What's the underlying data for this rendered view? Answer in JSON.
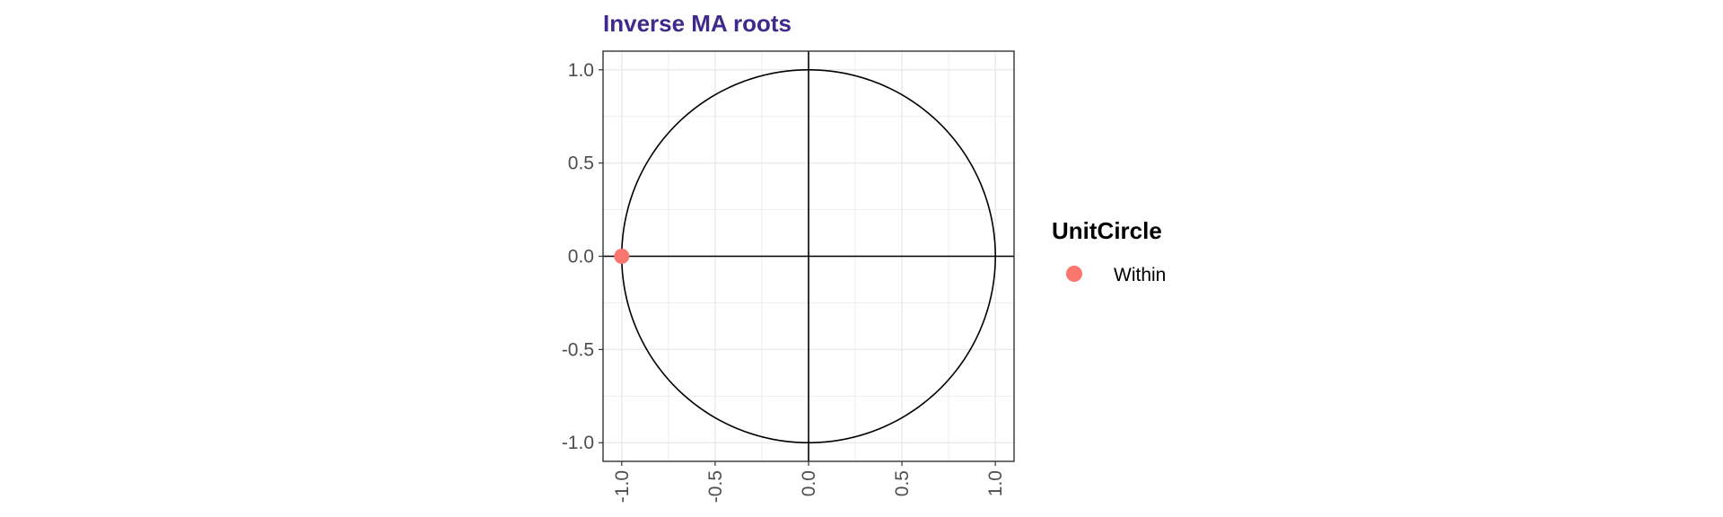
{
  "chart_data": {
    "type": "scatter",
    "title": "Inverse MA roots",
    "xlim": [
      -1.1,
      1.1
    ],
    "ylim": [
      -1.1,
      1.1
    ],
    "x_ticks": [
      -1.0,
      -0.5,
      0.0,
      0.5,
      1.0
    ],
    "y_ticks": [
      -1.0,
      -0.5,
      0.0,
      0.5,
      1.0
    ],
    "x_tick_labels": [
      "-1.0",
      "-0.5",
      "0.0",
      "0.5",
      "1.0"
    ],
    "y_tick_labels": [
      "-1.0",
      "-0.5",
      "0.0",
      "0.5",
      "1.0"
    ],
    "grid": true,
    "unit_circle": true,
    "reference_lines": {
      "x": 0,
      "y": 0
    },
    "legend": {
      "title": "UnitCircle",
      "placement": "right"
    },
    "series": [
      {
        "name": "Within",
        "color": "#F8766D",
        "points": [
          {
            "x": -1.0,
            "y": 0.0
          }
        ]
      }
    ]
  },
  "colors": {
    "title": "#3F2A8C",
    "grid": "#EBEBEB",
    "panel_border": "#333333",
    "lines": "#000000"
  }
}
